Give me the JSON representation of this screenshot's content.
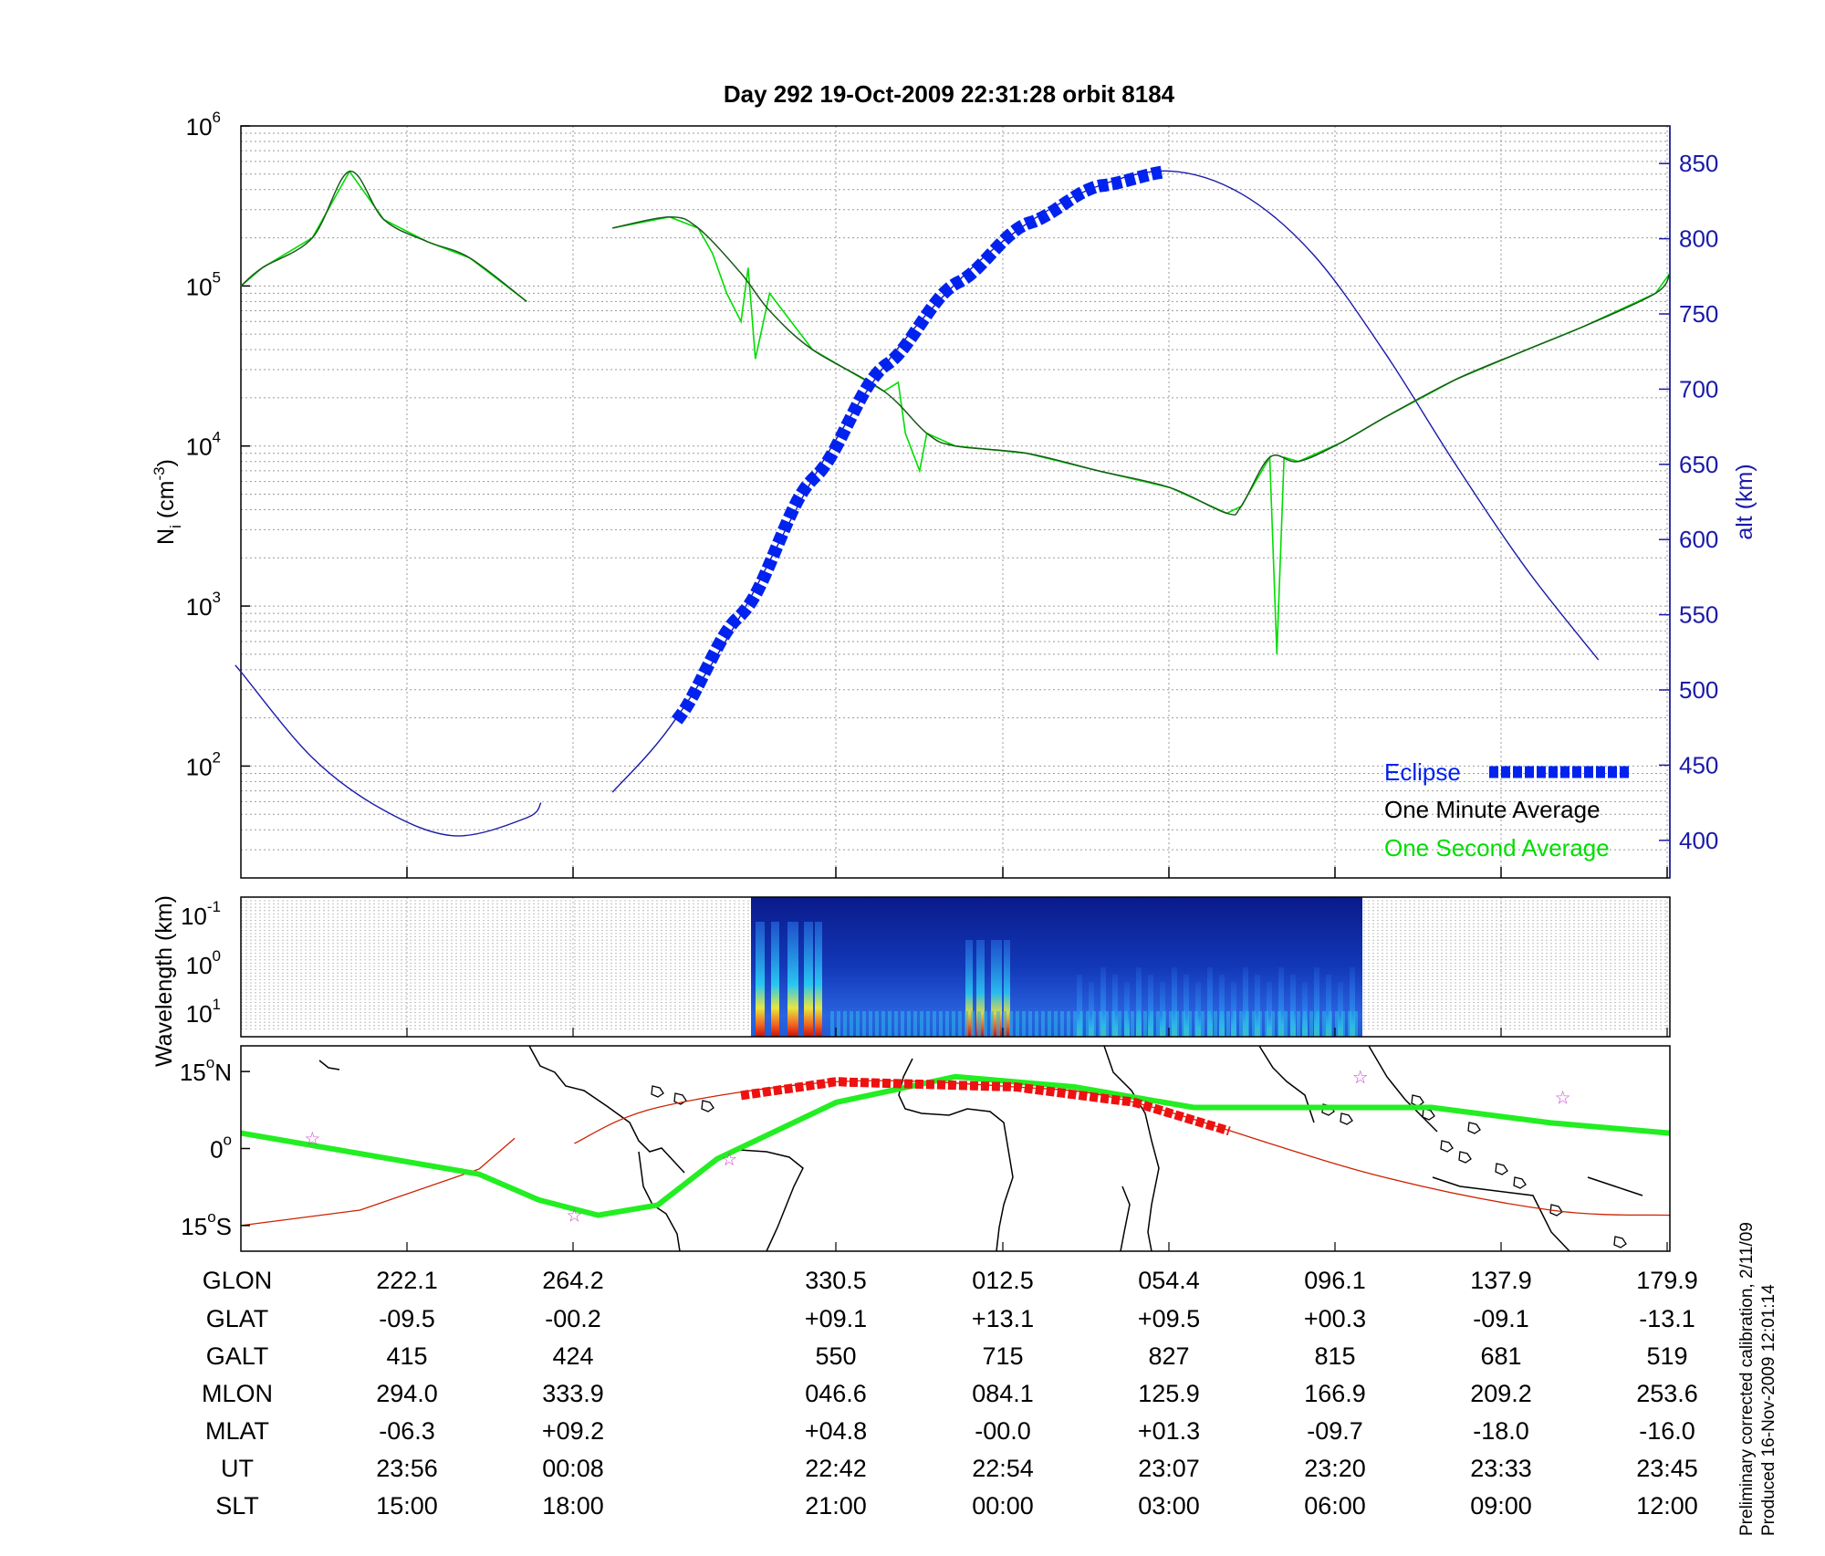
{
  "header": {
    "title": "Day 292  19-Oct-2009 22:31:28   orbit 8184"
  },
  "axes": {
    "left_label": "N",
    "left_label_sub": "i",
    "left_label_unit": " (cm",
    "left_label_unit_sup": "-3",
    "left_label_close": ")",
    "right_label": "alt (km)",
    "left_ticks": [
      {
        "base": "10",
        "exp": "6",
        "value": 1000000
      },
      {
        "base": "10",
        "exp": "5",
        "value": 100000
      },
      {
        "base": "10",
        "exp": "4",
        "value": 10000
      },
      {
        "base": "10",
        "exp": "3",
        "value": 1000
      },
      {
        "base": "10",
        "exp": "2",
        "value": 100
      }
    ],
    "right_ticks": [
      "850",
      "800",
      "750",
      "700",
      "650",
      "600",
      "550",
      "500",
      "450",
      "400"
    ],
    "wavelength_label": "Wavelength (km)",
    "wavelength_ticks": [
      {
        "base": "10",
        "exp": "-1"
      },
      {
        "base": "10",
        "exp": "0"
      },
      {
        "base": "10",
        "exp": "1"
      }
    ],
    "map_ticks": [
      {
        "text": "15",
        "deg": "o",
        "hemi": "N"
      },
      {
        "text": "0",
        "deg": "o",
        "hemi": ""
      },
      {
        "text": "15",
        "deg": "o",
        "hemi": "S"
      }
    ]
  },
  "legend": {
    "eclipse": "Eclipse",
    "minute": "One Minute Average",
    "second": "One Second Average"
  },
  "colors": {
    "eclipse": "#0022ee",
    "minute": "#000000",
    "second": "#00dd00",
    "altitude": "#1a1aa8",
    "orbit_track": "#cc2200",
    "footprint": "#22ee22",
    "eclipse_track": "#ee1111",
    "stars": "#cc44cc"
  },
  "table": {
    "row_labels": [
      "GLON",
      "GLAT",
      "GALT",
      "MLON",
      "MLAT",
      "UT",
      "SLT"
    ],
    "columns": [
      [
        "222.1",
        "-09.5",
        "415",
        "294.0",
        "-06.3",
        "23:56",
        "15:00"
      ],
      [
        "264.2",
        "-00.2",
        "424",
        "333.9",
        "+09.2",
        "00:08",
        "18:00"
      ],
      [
        "330.5",
        "+09.1",
        "550",
        "046.6",
        "+04.8",
        "22:42",
        "21:00"
      ],
      [
        "012.5",
        "+13.1",
        "715",
        "084.1",
        "-00.0",
        "22:54",
        "00:00"
      ],
      [
        "054.4",
        "+09.5",
        "827",
        "125.9",
        "+01.3",
        "23:07",
        "03:00"
      ],
      [
        "096.1",
        "+00.3",
        "815",
        "166.9",
        "-09.7",
        "23:20",
        "06:00"
      ],
      [
        "137.9",
        "-09.1",
        "681",
        "209.2",
        "-18.0",
        "23:33",
        "09:00"
      ],
      [
        "179.9",
        "-13.1",
        "519",
        "253.6",
        "-16.0",
        "23:45",
        "12:00"
      ]
    ]
  },
  "footer": {
    "line1": "Preliminary corrected calibration, 2/11/09",
    "line2": "Produced 16-Nov-2009 12:01:14"
  },
  "chart_data": {
    "type": "line",
    "x_axis": "UT / position along orbit (tick columns 1-8 per table)",
    "y_left": {
      "scale": "log",
      "range": [
        20,
        1000000
      ],
      "unit": "cm^-3"
    },
    "y_right": {
      "scale": "linear",
      "range": [
        375,
        875
      ],
      "unit": "km"
    },
    "series": [
      {
        "name": "One Minute Average",
        "segments": [
          [
            [
              0,
              100000
            ],
            [
              0.15,
              130000
            ],
            [
              0.5,
              200000
            ],
            [
              0.76,
              520000
            ],
            [
              1,
              260000
            ],
            [
              1.3,
              190000
            ],
            [
              1.6,
              150000
            ],
            [
              2.0,
              80000
            ]
          ],
          [
            [
              2.6,
              230000
            ],
            [
              3.0,
              270000
            ],
            [
              3.2,
              230000
            ],
            [
              3.5,
              120000
            ],
            [
              3.7,
              70000
            ],
            [
              4.0,
              40000
            ],
            [
              4.5,
              22000
            ],
            [
              4.8,
              12000
            ],
            [
              5.0,
              10000
            ],
            [
              5.5,
              9000
            ],
            [
              6.0,
              7000
            ],
            [
              6.5,
              5500
            ],
            [
              6.9,
              3800
            ],
            [
              7.0,
              4200
            ],
            [
              7.2,
              8500
            ],
            [
              7.4,
              8000
            ],
            [
              7.7,
              10500
            ],
            [
              8.0,
              15000
            ],
            [
              8.5,
              26000
            ],
            [
              9.0,
              40000
            ],
            [
              9.4,
              56000
            ],
            [
              9.9,
              90000
            ],
            [
              10.0,
              120000
            ]
          ]
        ]
      },
      {
        "name": "One Second Average",
        "segments": [
          [
            [
              0,
              100000
            ],
            [
              0.15,
              130000
            ],
            [
              0.5,
              200000
            ],
            [
              0.76,
              520000
            ],
            [
              1,
              260000
            ],
            [
              1.3,
              190000
            ],
            [
              1.6,
              150000
            ],
            [
              2.0,
              80000
            ]
          ],
          [
            [
              2.6,
              230000
            ],
            [
              3.0,
              270000
            ],
            [
              3.2,
              230000
            ],
            [
              3.3,
              160000
            ],
            [
              3.4,
              90000
            ],
            [
              3.5,
              60000
            ],
            [
              3.55,
              130000
            ],
            [
              3.6,
              35000
            ],
            [
              3.7,
              90000
            ],
            [
              4.0,
              40000
            ],
            [
              4.5,
              22000
            ],
            [
              4.6,
              25000
            ],
            [
              4.65,
              12000
            ],
            [
              4.75,
              7000
            ],
            [
              4.8,
              12000
            ],
            [
              5.0,
              10000
            ],
            [
              5.5,
              9000
            ],
            [
              6.0,
              7000
            ],
            [
              6.5,
              5500
            ],
            [
              6.9,
              3800
            ],
            [
              7.0,
              4200
            ],
            [
              7.2,
              8500
            ],
            [
              7.25,
              500
            ],
            [
              7.3,
              8500
            ],
            [
              7.4,
              8000
            ],
            [
              7.7,
              10500
            ],
            [
              8.0,
              15000
            ],
            [
              8.5,
              26000
            ],
            [
              9.0,
              40000
            ],
            [
              9.4,
              56000
            ],
            [
              9.9,
              90000
            ],
            [
              10.0,
              120000
            ]
          ]
        ]
      },
      {
        "name": "Altitude",
        "axis": "right",
        "segments": [
          [
            [
              -1.0,
              520
            ],
            [
              0,
              512
            ],
            [
              0.5,
              455
            ],
            [
              1.0,
              420
            ],
            [
              1.5,
              403
            ],
            [
              2.0,
              415
            ],
            [
              2.1,
              425
            ]
          ],
          [
            [
              2.6,
              432
            ],
            [
              3.0,
              475
            ],
            [
              3.5,
              550
            ],
            [
              4.0,
              640
            ],
            [
              4.5,
              715
            ],
            [
              5.0,
              770
            ],
            [
              5.5,
              810
            ],
            [
              6.0,
              835
            ],
            [
              6.5,
              845
            ],
            [
              7.0,
              830
            ],
            [
              7.5,
              790
            ],
            [
              8.0,
              725
            ],
            [
              8.5,
              650
            ],
            [
              9.0,
              580
            ],
            [
              9.5,
              520
            ]
          ]
        ]
      },
      {
        "name": "Eclipse",
        "axis": "right",
        "x_range": [
          3.05,
          6.45
        ]
      }
    ],
    "map": {
      "lat_range": [
        -20,
        20
      ],
      "footprint": [
        [
          0,
          3
        ],
        [
          1,
          -1
        ],
        [
          2,
          -5
        ],
        [
          2.5,
          -10
        ],
        [
          3.0,
          -13
        ],
        [
          3.5,
          -11
        ],
        [
          4.0,
          -2
        ],
        [
          5.0,
          9
        ],
        [
          6.0,
          14
        ],
        [
          7.0,
          12
        ],
        [
          8.0,
          8
        ],
        [
          9.0,
          8
        ],
        [
          10.0,
          8
        ],
        [
          11.0,
          5
        ],
        [
          12.0,
          3
        ]
      ],
      "orbit_track": [
        [
          0,
          -15
        ],
        [
          1.0,
          -12
        ],
        [
          2.0,
          -4
        ],
        [
          2.3,
          2
        ]
      ],
      "orbit_track_2": [
        [
          2.8,
          1
        ],
        [
          3.5,
          8
        ],
        [
          5.0,
          13
        ],
        [
          6.5,
          12
        ],
        [
          7.5,
          9
        ],
        [
          9.5,
          -5
        ],
        [
          11.0,
          -12
        ],
        [
          12.0,
          -13
        ]
      ],
      "stars": [
        [
          0.6,
          2
        ],
        [
          2.8,
          -13
        ],
        [
          4.1,
          -2
        ],
        [
          9.4,
          14
        ],
        [
          11.1,
          10
        ]
      ]
    }
  }
}
